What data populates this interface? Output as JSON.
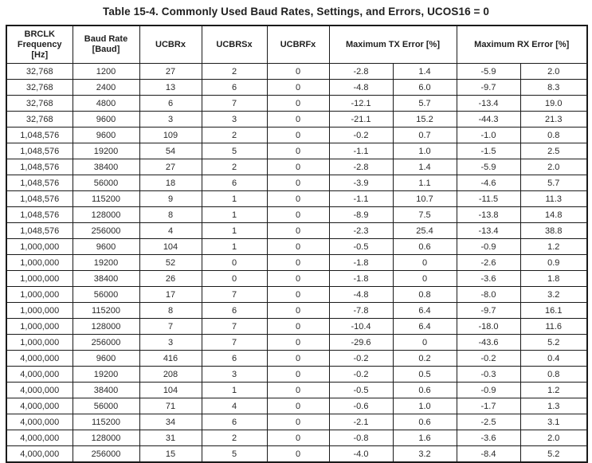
{
  "title": "Table 15-4. Commonly Used Baud Rates, Settings, and Errors, UCOS16 = 0",
  "table": {
    "headers": [
      "BRCLK Frequency [Hz]",
      "Baud Rate [Baud]",
      "UCBRx",
      "UCBRSx",
      "UCBRFx",
      "Maximum TX Error [%]",
      "Maximum RX Error [%]"
    ],
    "rows": [
      [
        "32,768",
        "1200",
        "27",
        "2",
        "0",
        "-2.8",
        "1.4",
        "-5.9",
        "2.0"
      ],
      [
        "32,768",
        "2400",
        "13",
        "6",
        "0",
        "-4.8",
        "6.0",
        "-9.7",
        "8.3"
      ],
      [
        "32,768",
        "4800",
        "6",
        "7",
        "0",
        "-12.1",
        "5.7",
        "-13.4",
        "19.0"
      ],
      [
        "32,768",
        "9600",
        "3",
        "3",
        "0",
        "-21.1",
        "15.2",
        "-44.3",
        "21.3"
      ],
      [
        "1,048,576",
        "9600",
        "109",
        "2",
        "0",
        "-0.2",
        "0.7",
        "-1.0",
        "0.8"
      ],
      [
        "1,048,576",
        "19200",
        "54",
        "5",
        "0",
        "-1.1",
        "1.0",
        "-1.5",
        "2.5"
      ],
      [
        "1,048,576",
        "38400",
        "27",
        "2",
        "0",
        "-2.8",
        "1.4",
        "-5.9",
        "2.0"
      ],
      [
        "1,048,576",
        "56000",
        "18",
        "6",
        "0",
        "-3.9",
        "1.1",
        "-4.6",
        "5.7"
      ],
      [
        "1,048,576",
        "115200",
        "9",
        "1",
        "0",
        "-1.1",
        "10.7",
        "-11.5",
        "11.3"
      ],
      [
        "1,048,576",
        "128000",
        "8",
        "1",
        "0",
        "-8.9",
        "7.5",
        "-13.8",
        "14.8"
      ],
      [
        "1,048,576",
        "256000",
        "4",
        "1",
        "0",
        "-2.3",
        "25.4",
        "-13.4",
        "38.8"
      ],
      [
        "1,000,000",
        "9600",
        "104",
        "1",
        "0",
        "-0.5",
        "0.6",
        "-0.9",
        "1.2"
      ],
      [
        "1,000,000",
        "19200",
        "52",
        "0",
        "0",
        "-1.8",
        "0",
        "-2.6",
        "0.9"
      ],
      [
        "1,000,000",
        "38400",
        "26",
        "0",
        "0",
        "-1.8",
        "0",
        "-3.6",
        "1.8"
      ],
      [
        "1,000,000",
        "56000",
        "17",
        "7",
        "0",
        "-4.8",
        "0.8",
        "-8.0",
        "3.2"
      ],
      [
        "1,000,000",
        "115200",
        "8",
        "6",
        "0",
        "-7.8",
        "6.4",
        "-9.7",
        "16.1"
      ],
      [
        "1,000,000",
        "128000",
        "7",
        "7",
        "0",
        "-10.4",
        "6.4",
        "-18.0",
        "11.6"
      ],
      [
        "1,000,000",
        "256000",
        "3",
        "7",
        "0",
        "-29.6",
        "0",
        "-43.6",
        "5.2"
      ],
      [
        "4,000,000",
        "9600",
        "416",
        "6",
        "0",
        "-0.2",
        "0.2",
        "-0.2",
        "0.4"
      ],
      [
        "4,000,000",
        "19200",
        "208",
        "3",
        "0",
        "-0.2",
        "0.5",
        "-0.3",
        "0.8"
      ],
      [
        "4,000,000",
        "38400",
        "104",
        "1",
        "0",
        "-0.5",
        "0.6",
        "-0.9",
        "1.2"
      ],
      [
        "4,000,000",
        "56000",
        "71",
        "4",
        "0",
        "-0.6",
        "1.0",
        "-1.7",
        "1.3"
      ],
      [
        "4,000,000",
        "115200",
        "34",
        "6",
        "0",
        "-2.1",
        "0.6",
        "-2.5",
        "3.1"
      ],
      [
        "4,000,000",
        "128000",
        "31",
        "2",
        "0",
        "-0.8",
        "1.6",
        "-3.6",
        "2.0"
      ],
      [
        "4,000,000",
        "256000",
        "15",
        "5",
        "0",
        "-4.0",
        "3.2",
        "-8.4",
        "5.2"
      ]
    ]
  }
}
